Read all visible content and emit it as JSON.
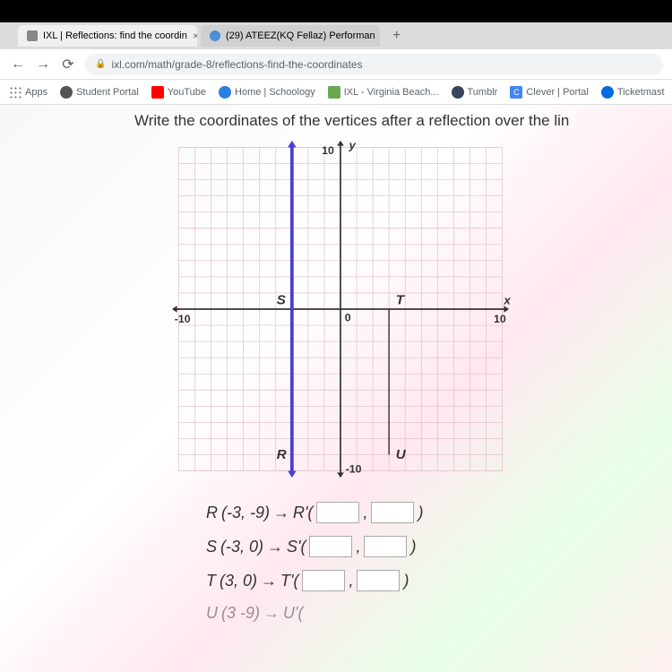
{
  "tabs": [
    {
      "label": "IXL | Reflections: find the coordin",
      "active": true
    },
    {
      "label": "(29) ATEEZ(KQ Fellaz) Performan"
    }
  ],
  "url": "ixl.com/math/grade-8/reflections-find-the-coordinates",
  "bookmarks": [
    {
      "label": "Apps",
      "type": "apps"
    },
    {
      "label": "Student Portal",
      "color": "#555"
    },
    {
      "label": "YouTube",
      "color": "#f00"
    },
    {
      "label": "Home | Schoology",
      "color": "#2a7de1"
    },
    {
      "label": "IXL - Virginia Beach...",
      "color": "#6aa84f"
    },
    {
      "label": "Tumblr",
      "color": "#36465d"
    },
    {
      "label": "Clever | Portal",
      "color": "#4285f4"
    },
    {
      "label": "Ticketmast",
      "color": "#026cdf"
    }
  ],
  "question": "Write the coordinates of the vertices after a reflection over the lin",
  "graph": {
    "xmin": -10,
    "xmax": 10,
    "ymin": -10,
    "ymax": 10,
    "grid_color": "#e5b8c8",
    "axis_color": "#333333",
    "line_color": "#4a3fd6",
    "tick_color": "#333333",
    "y_label": "y",
    "x_label": "x",
    "points": {
      "R": {
        "x": -3,
        "y": -9
      },
      "S": {
        "x": -3,
        "y": 0
      },
      "T": {
        "x": 3,
        "y": 0
      },
      "U": {
        "x": 3,
        "y": -9
      }
    },
    "labels": {
      "ten": "10",
      "neg_ten": "-10",
      "zero": "0"
    }
  },
  "answers": [
    {
      "pt": "R",
      "from": "(-3, -9)",
      "to": "R'("
    },
    {
      "pt": "S",
      "from": "(-3, 0)",
      "to": "S'("
    },
    {
      "pt": "T",
      "from": "(3, 0)",
      "to": "T'("
    },
    {
      "pt": "U",
      "from": "(3  -9)",
      "to": "U'("
    }
  ]
}
